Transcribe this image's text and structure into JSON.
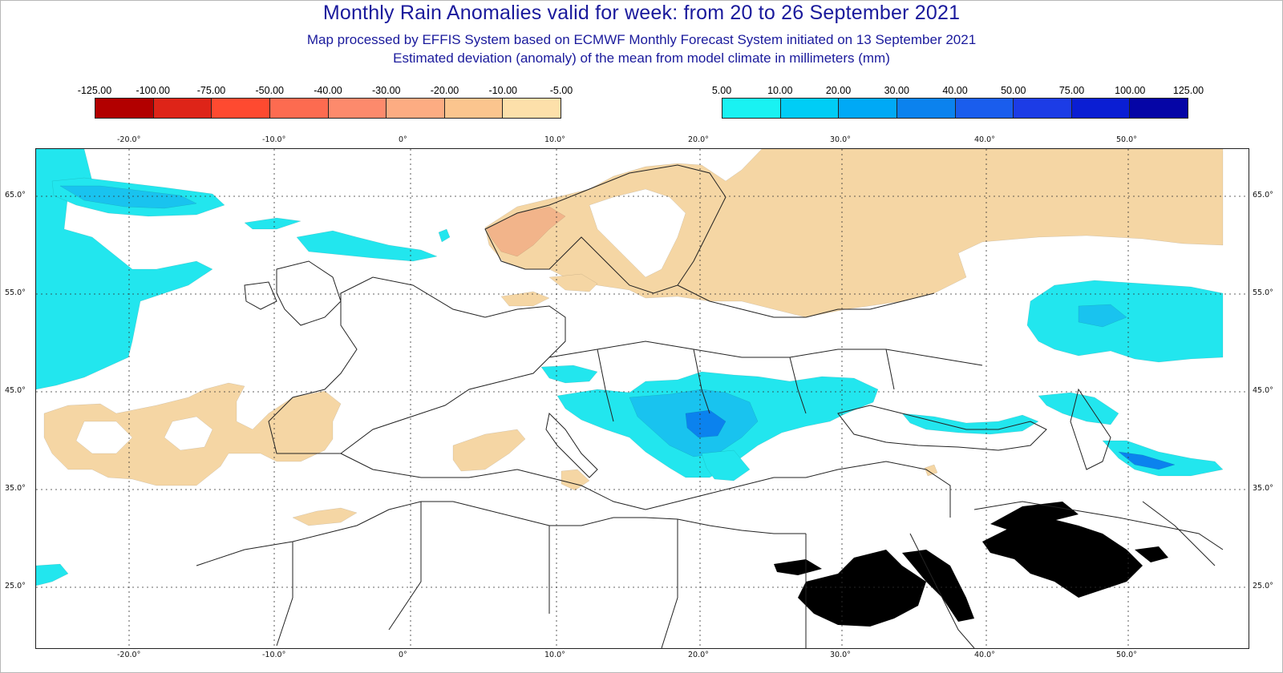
{
  "title": "Monthly Rain Anomalies valid for week: from 20 to 26 September 2021",
  "subtitle_1": "Map processed by EFFIS System based on ECMWF Monthly Forecast System initiated on 13 September 2021",
  "subtitle_2": "Estimated deviation (anomaly) of the mean from model climate in millimeters (mm)",
  "legend_negative": {
    "labels": [
      "-125.00",
      "-100.00",
      "-75.00",
      "-50.00",
      "-40.00",
      "-30.00",
      "-20.00",
      "-10.00",
      "-5.00"
    ],
    "colors": [
      "#b20000",
      "#de2418",
      "#fe4a30",
      "#fd6b50",
      "#fd8a6c",
      "#fdac82",
      "#fbc58e",
      "#fde0aa"
    ]
  },
  "legend_positive": {
    "labels": [
      "5.00",
      "10.00",
      "20.00",
      "30.00",
      "40.00",
      "50.00",
      "75.00",
      "100.00",
      "125.00"
    ],
    "colors": [
      "#19f2f2",
      "#00cdf6",
      "#00a9f6",
      "#0b82ee",
      "#1a5ded",
      "#1c3ce6",
      "#0a1ed3",
      "#0505a6"
    ]
  },
  "map": {
    "lon_ticks": [
      "-20.0°",
      "-10.0°",
      "0°",
      "10.0°",
      "20.0°",
      "30.0°",
      "40.0°",
      "50.0°"
    ],
    "lat_ticks": [
      "65.0°",
      "55.0°",
      "45.0°",
      "35.0°",
      "25.0°"
    ],
    "colors": {
      "dry_fill": "#f5d6a4",
      "dry_strong": "#f2b48a",
      "wet_light": "#22e6ee",
      "wet_mid": "#19c3ef",
      "wet_deep": "#0b82ee",
      "mask": "#000000",
      "borders": "#222222"
    }
  }
}
